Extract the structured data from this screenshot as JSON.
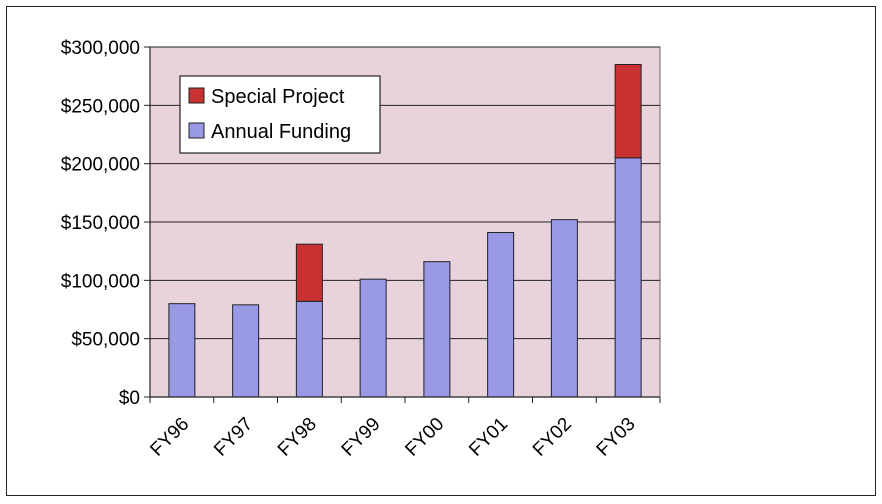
{
  "chart_data": {
    "type": "bar",
    "stacked": true,
    "categories": [
      "FY96",
      "FY97",
      "FY98",
      "FY99",
      "FY00",
      "FY01",
      "FY02",
      "FY03"
    ],
    "series": [
      {
        "name": "Annual Funding",
        "values": [
          80000,
          79000,
          82000,
          101000,
          116000,
          141000,
          152000,
          205000
        ],
        "color": "#9999e6"
      },
      {
        "name": "Special Project",
        "values": [
          0,
          0,
          49000,
          0,
          0,
          0,
          0,
          80000
        ],
        "color": "#c83232"
      }
    ],
    "title": "",
    "xlabel": "",
    "ylabel": "",
    "ylim": [
      0,
      300000
    ],
    "yticks": [
      "$0",
      "$50,000",
      "$100,000",
      "$150,000",
      "$200,000",
      "$250,000",
      "$300,000"
    ],
    "grid": true,
    "legend_position": "top-left",
    "legend": [
      "Special Project",
      "Annual Funding"
    ],
    "plot_background": "#e8d3dc"
  }
}
